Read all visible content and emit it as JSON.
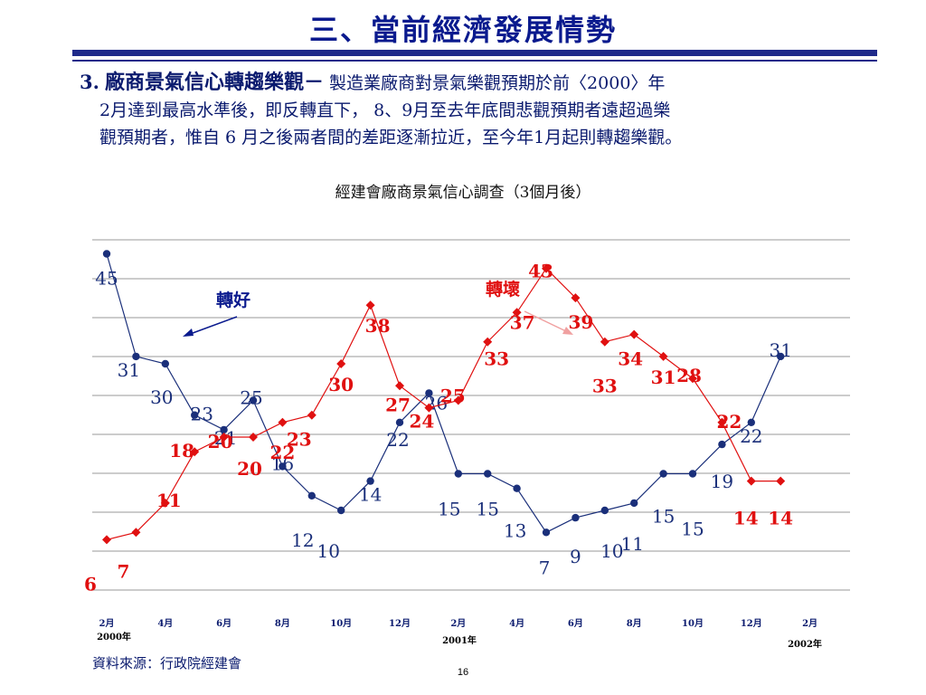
{
  "page": {
    "title": "三、當前經濟發展情勢",
    "para_num": "3.",
    "para_head": "廠商景氣信心轉趨樂觀－",
    "para_line1": "製造業廠商對景氣樂觀預期於前〈2000〉年",
    "para_line2": "2月達到最高水準後，即反轉直下， 8、9月至去年底間悲觀預期者遠超過樂",
    "para_line3": "觀預期者，惟自 6 月之後兩者間的差距逐漸拉近，至今年1月起則轉趨樂觀。",
    "source": "資料來源：行政院經建會",
    "page_number": "16"
  },
  "chart_data": {
    "type": "line",
    "title": "經建會廠商景氣信心調查（3個月後）",
    "x_tick_labels": [
      "2月",
      "4月",
      "6月",
      "8月",
      "10月",
      "12月",
      "2月",
      "4月",
      "6月",
      "8月",
      "10月",
      "12月",
      "2月"
    ],
    "year_labels": [
      "2000年",
      "2001年",
      "2002年"
    ],
    "annotations": [
      "轉好",
      "轉壞"
    ],
    "grid": true,
    "series": [
      {
        "color": "#1a2f7a",
        "marker": "circle",
        "values": [
          45,
          31,
          30,
          23,
          21,
          25,
          16,
          12,
          10,
          14,
          22,
          26,
          15,
          15,
          13,
          7,
          9,
          10,
          11,
          15,
          15,
          19,
          22,
          31
        ]
      },
      {
        "color": "#e01010",
        "marker": "diamond",
        "values": [
          6,
          7,
          11,
          18,
          20,
          20,
          22,
          23,
          30,
          38,
          27,
          24,
          25,
          33,
          37,
          43,
          39,
          33,
          34,
          31,
          28,
          22,
          14,
          14
        ]
      }
    ]
  }
}
